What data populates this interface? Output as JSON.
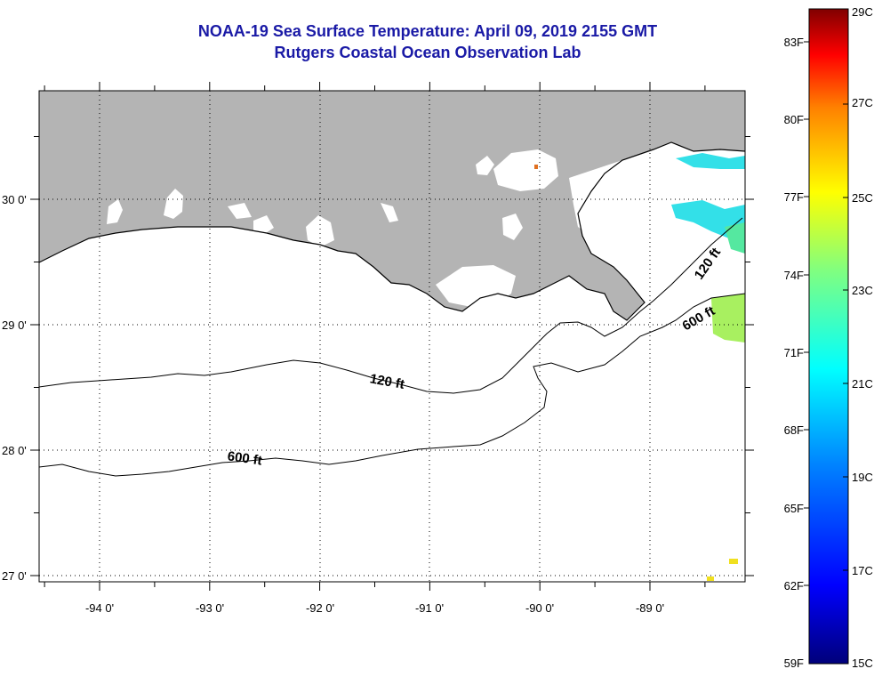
{
  "header": {
    "title": "NOAA-19 Sea Surface Temperature:  April 09, 2019 2155 GMT",
    "subtitle": "Rutgers Coastal Ocean Observation Lab"
  },
  "map": {
    "lon_labels": [
      "-94 0'",
      "-93 0'",
      "-92 0'",
      "-91 0'",
      "-90 0'",
      "-89 0'"
    ],
    "lat_labels": [
      "30 0'",
      "29 0'",
      "28 0'",
      "27 0'"
    ],
    "contour_labels": [
      "120 ft",
      "600 ft",
      "120 ft",
      "600 ft"
    ],
    "land_color": "#b4b4b4",
    "cloud_color": "#ffffff"
  },
  "colorbar": {
    "fahrenheit_labels": [
      "83F",
      "80F",
      "77F",
      "74F",
      "71F",
      "68F",
      "65F",
      "62F",
      "59F"
    ],
    "celsius_labels": [
      "29C",
      "27C",
      "25C",
      "23C",
      "21C",
      "19C",
      "17C",
      "15C"
    ],
    "range_c": [
      15,
      29
    ]
  }
}
